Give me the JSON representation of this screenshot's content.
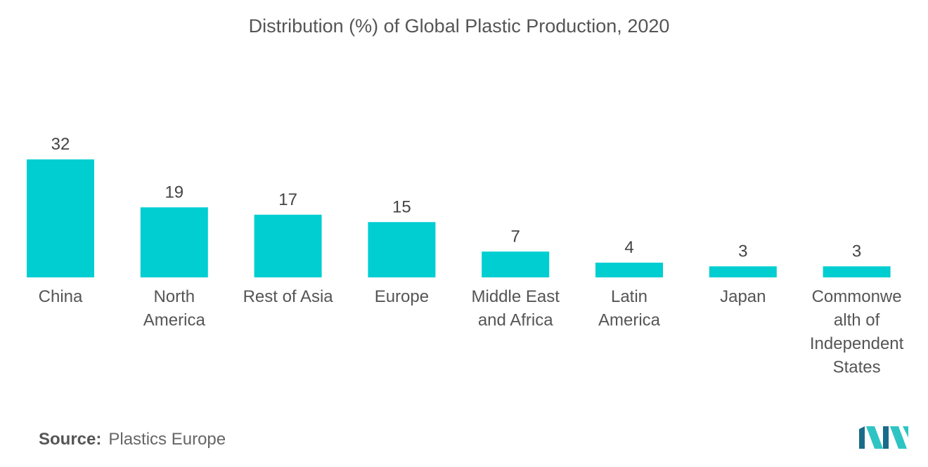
{
  "colors": {
    "bar": "#00CED1",
    "logo_dark": "#1a6b8a",
    "logo_light": "#2ec4c4"
  },
  "source": {
    "label": "Source:",
    "value": "Plastics Europe"
  },
  "logo": {
    "icon": "mordor-intelligence-logo-icon"
  },
  "chart_data": {
    "type": "bar",
    "title": "Distribution (%) of Global Plastic Production, 2020",
    "xlabel": "",
    "ylabel": "",
    "ylim": [
      0,
      32
    ],
    "grid": false,
    "categories": [
      "China",
      "North America",
      "Rest of Asia",
      "Europe",
      "Middle East and Africa",
      "Latin America",
      "Japan",
      "Commonwealth of Independent States"
    ],
    "category_lines": [
      [
        "China"
      ],
      [
        "North",
        "America"
      ],
      [
        "Rest of Asia"
      ],
      [
        "Europe"
      ],
      [
        "Middle East",
        "and Africa"
      ],
      [
        "Latin",
        "America"
      ],
      [
        "Japan"
      ],
      [
        "Commonwe",
        "alth of",
        "Independent",
        "States"
      ]
    ],
    "values": [
      32,
      19,
      17,
      15,
      7,
      4,
      3,
      3
    ]
  }
}
